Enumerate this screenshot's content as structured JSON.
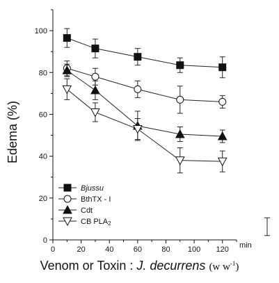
{
  "chart_data": {
    "type": "line",
    "x": [
      10,
      30,
      60,
      90,
      120
    ],
    "xlim": [
      0,
      130
    ],
    "ylim": [
      0,
      110
    ],
    "x_ticks": [
      0,
      20,
      40,
      60,
      80,
      100,
      120
    ],
    "y_ticks": [
      0,
      20,
      40,
      60,
      80,
      100
    ],
    "x_unit": "min",
    "ylabel": "Edema (%)",
    "xlabel": {
      "part1": "Venom or Toxin : ",
      "part2": "J. decurrens",
      "part3": "(w w",
      "part4": "-1",
      "part5": ")"
    },
    "legend_position": "lower-left",
    "series": [
      {
        "name": "Bjussu",
        "marker": "filled-square",
        "values": [
          96.5,
          91.5,
          87.5,
          83.5,
          82.5
        ],
        "errors": [
          4.5,
          4.5,
          4,
          3.5,
          5
        ]
      },
      {
        "name": "BthTX - I",
        "marker": "open-circle",
        "values": [
          82,
          78,
          72,
          67,
          66
        ],
        "errors": [
          3.5,
          4,
          4,
          6.5,
          3
        ]
      },
      {
        "name": "Cdt",
        "marker": "filled-triangle",
        "values": [
          81,
          71.5,
          54.5,
          50.5,
          49.5
        ],
        "errors": [
          3,
          4.5,
          7,
          3.5,
          3
        ]
      },
      {
        "name": "CB PLA2",
        "name_main": "CB PLA",
        "name_sub": "2",
        "marker": "open-triangle-down",
        "values": [
          72,
          61,
          53,
          38,
          37.5
        ],
        "errors": [
          5,
          4.5,
          5,
          6,
          5
        ]
      }
    ],
    "scale_bar": {
      "data_height": 8.5
    }
  }
}
